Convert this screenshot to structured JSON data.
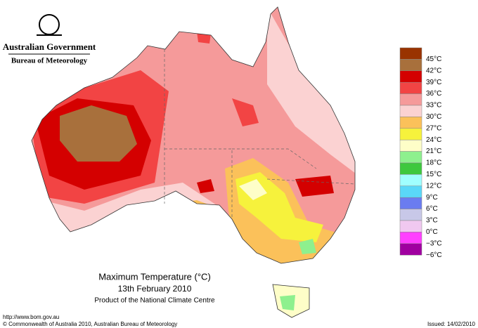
{
  "header": {
    "government": "Australian Government",
    "agency": "Bureau of Meteorology"
  },
  "legend": {
    "labels": [
      "45°C",
      "42°C",
      "39°C",
      "36°C",
      "33°C",
      "30°C",
      "27°C",
      "24°C",
      "21°C",
      "18°C",
      "15°C",
      "12°C",
      "9°C",
      "6°C",
      "3°C",
      "0°C",
      "−3°C",
      "−6°C"
    ],
    "colors": [
      "#993300",
      "#a8703c",
      "#d40000",
      "#f24444",
      "#f59a9a",
      "#fbd2d2",
      "#fbc15a",
      "#f6f23c",
      "#fefec8",
      "#8ef08e",
      "#3ec83e",
      "#a0ffff",
      "#5ad8f8",
      "#6a7cf0",
      "#c8c8e8",
      "#f0c8f0",
      "#ff40ff",
      "#a000a0"
    ]
  },
  "caption": {
    "title": "Maximum Temperature (°C)",
    "date": "13th February 2010",
    "product": "Product of the National Climate Centre"
  },
  "footer": {
    "url": "http://www.bom.gov.au",
    "copyright": "© Commonwealth of Australia 2010, Australian Bureau of Meteorology",
    "issued": "Issued: 14/02/2010"
  }
}
